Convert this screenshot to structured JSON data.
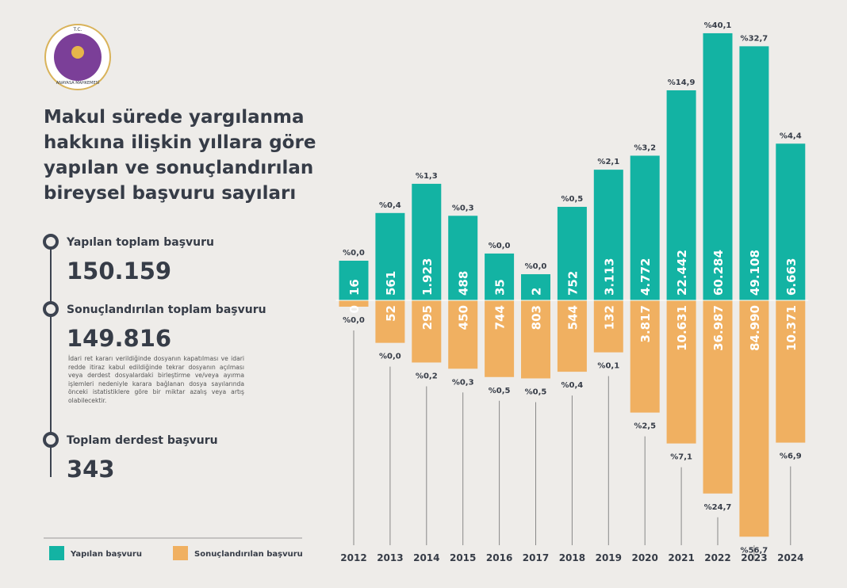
{
  "logo": {
    "top": "T.C.",
    "bottom": "ANAYASA MAHKEMESİ"
  },
  "title_lines": [
    "Makul sürede yargılanma",
    "hakkına ilişkin yıllara göre",
    "yapılan ve sonuçlandırılan",
    "bireysel başvuru sayıları"
  ],
  "stats": [
    {
      "label": "Yapılan toplam başvuru",
      "value": 150159,
      "value_label": "150.159"
    },
    {
      "label": "Sonuçlandırılan toplam başvuru",
      "value": 149816,
      "value_label": "149.816"
    },
    {
      "label": "Toplam derdest başvuru",
      "value": 343,
      "value_label": "343"
    }
  ],
  "note": "İdari ret kararı verildiğinde dosyanın kapatılması ve idari redde itiraz kabul edildiğinde tekrar dosyanın açılması veya derdest dosyalardaki birleştirme ve/veya ayırma işlemleri nedeniyle karara bağlanan dosya sayılarında önceki istatistiklere göre bir miktar azalış veya artış olabilecektir.",
  "chart_data": {
    "type": "diverging-bar",
    "categories": [
      "2012",
      "2013",
      "2014",
      "2015",
      "2016",
      "2017",
      "2018",
      "2019",
      "2020",
      "2021",
      "2022",
      "2023",
      "2024"
    ],
    "series": [
      {
        "name": "Yapılan başvuru",
        "color": "#13b3a3",
        "values": [
          16,
          561,
          1923,
          488,
          35,
          2,
          752,
          3113,
          4772,
          22442,
          60284,
          49108,
          6663
        ],
        "value_labels": [
          "16",
          "561",
          "1.923",
          "488",
          "35",
          "2",
          "752",
          "3.113",
          "4.772",
          "22.442",
          "60.284",
          "49.108",
          "6.663"
        ],
        "share_values": [
          0.0,
          0.4,
          1.3,
          0.3,
          0.0,
          0.0,
          0.5,
          2.1,
          3.2,
          14.9,
          40.1,
          32.7,
          4.4
        ],
        "share_labels": [
          "%0,0",
          "%0,4",
          "%1,3",
          "%0,3",
          "%0,0",
          "%0,0",
          "%0,5",
          "%2,1",
          "%3,2",
          "%14,9",
          "%40,1",
          "%32,7",
          "%4,4"
        ]
      },
      {
        "name": "Sonuçlandırılan başvuru",
        "color": "#f0b061",
        "values": [
          0,
          52,
          295,
          450,
          744,
          803,
          544,
          132,
          3817,
          10631,
          36987,
          84990,
          10371
        ],
        "value_labels": [
          "0",
          "52",
          "295",
          "450",
          "744",
          "803",
          "544",
          "132",
          "3.817",
          "10.631",
          "36.987",
          "84.990",
          "10.371"
        ],
        "share_values": [
          0.0,
          0.0,
          0.2,
          0.3,
          0.5,
          0.5,
          0.4,
          0.1,
          2.5,
          7.1,
          24.7,
          56.7,
          6.9
        ],
        "share_labels": [
          "%0,0",
          "%0,0",
          "%0,2",
          "%0,3",
          "%0,5",
          "%0,5",
          "%0,4",
          "%0,1",
          "%2,5",
          "%7,1",
          "%24,7",
          "%56,7",
          "%6,9"
        ]
      }
    ]
  }
}
